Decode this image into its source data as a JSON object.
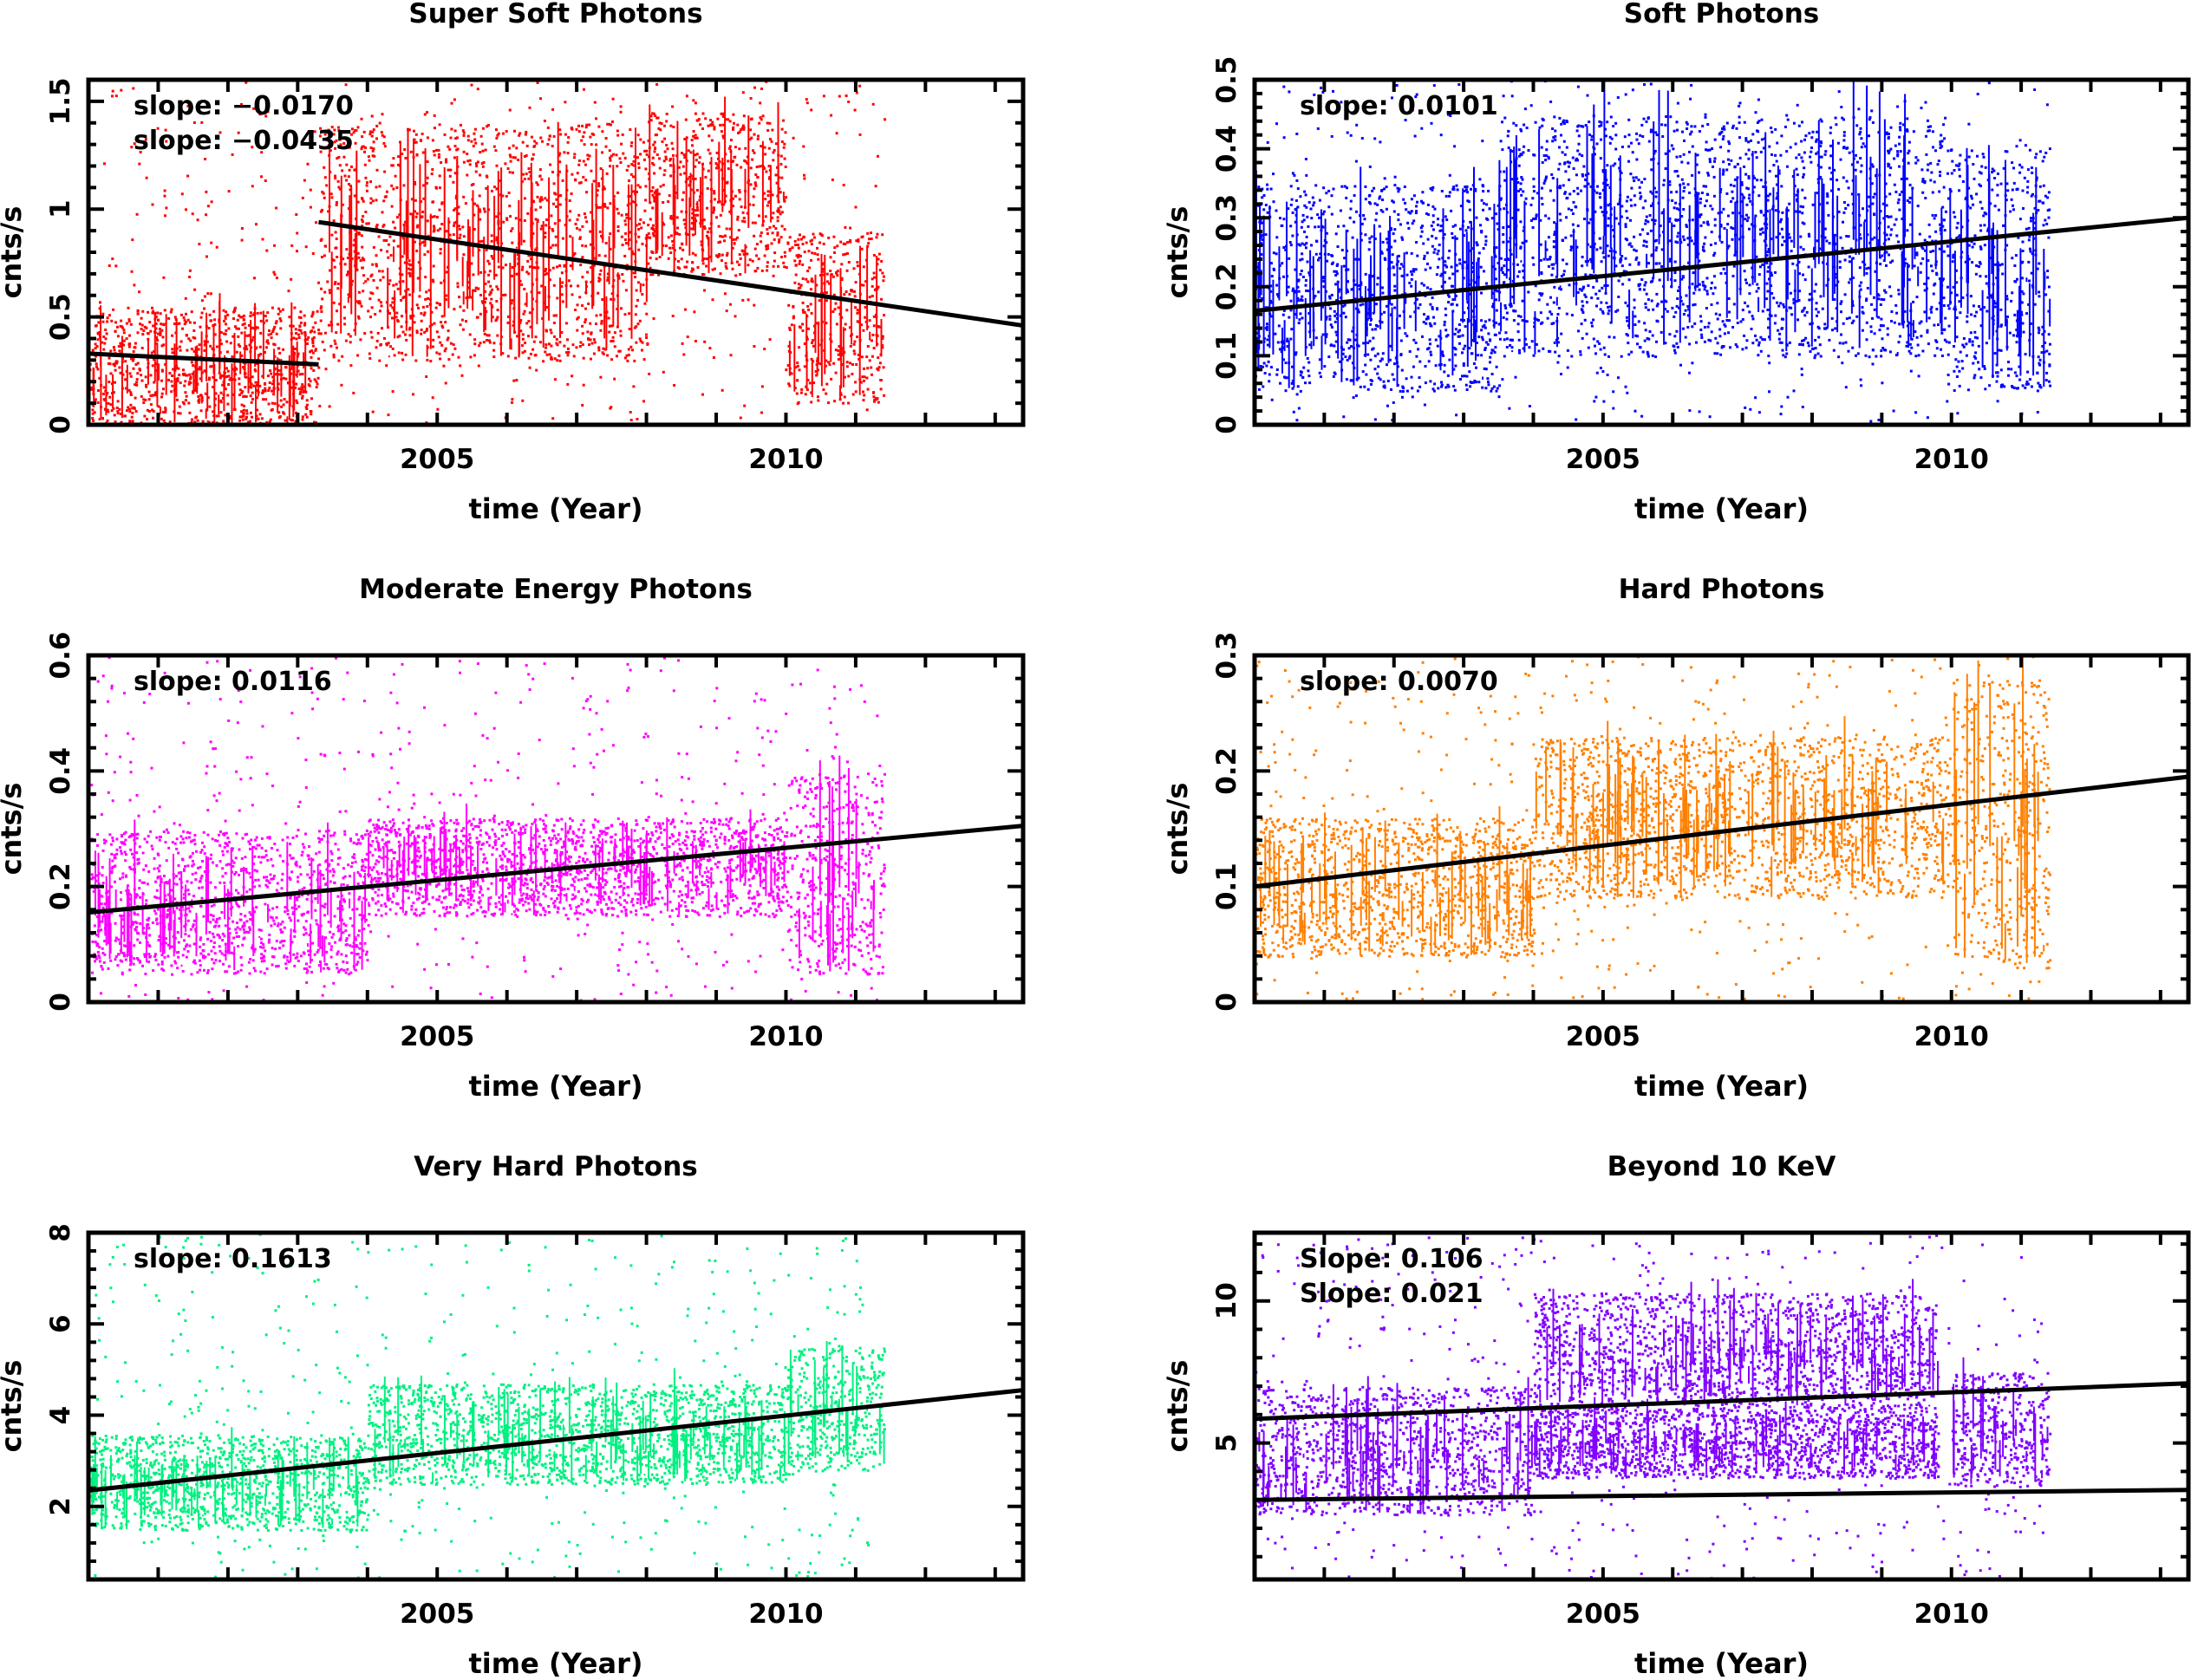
{
  "chart_data": [
    {
      "type": "scatter",
      "title": "Super Soft Photons",
      "xlabel": "time (Year)",
      "ylabel": "cnts/s",
      "xlim": [
        2000.0,
        2013.4
      ],
      "ylim": [
        0,
        1.6
      ],
      "x_ticks": [
        2005,
        2010
      ],
      "x_tick_labels": [
        "2005",
        "2010"
      ],
      "y_ticks": [
        0,
        0.5,
        1,
        1.5
      ],
      "y_tick_labels": [
        "0",
        "0.5",
        "1",
        "1.5"
      ],
      "color": "#ff0000",
      "annotations": [
        "slope: −0.0170",
        "slope: −0.0435"
      ],
      "fit_lines": [
        {
          "x": [
            2000.0,
            2003.3
          ],
          "y": [
            0.33,
            0.28
          ]
        },
        {
          "x": [
            2003.3,
            2013.4
          ],
          "y": [
            0.94,
            0.46
          ]
        }
      ],
      "data_bands": [
        {
          "from": 2000.0,
          "to": 2003.3,
          "low": 0.0,
          "high": 0.55
        },
        {
          "from": 2003.3,
          "to": 2008.0,
          "low": 0.3,
          "high": 1.4
        },
        {
          "from": 2008.0,
          "to": 2010.0,
          "low": 0.7,
          "high": 1.45
        },
        {
          "from": 2010.0,
          "to": 2011.4,
          "low": 0.1,
          "high": 0.9
        }
      ]
    },
    {
      "type": "scatter",
      "title": "Soft Photons",
      "xlabel": "time (Year)",
      "ylabel": "cnts/s",
      "xlim": [
        2000.0,
        2013.4
      ],
      "ylim": [
        0,
        0.5
      ],
      "x_ticks": [
        2005,
        2010
      ],
      "x_tick_labels": [
        "2005",
        "2010"
      ],
      "y_ticks": [
        0,
        0.1,
        0.2,
        0.3,
        0.4,
        0.5
      ],
      "y_tick_labels": [
        "0",
        "0.1",
        "0.2",
        "0.3",
        "0.4",
        "0.5"
      ],
      "color": "#0000ff",
      "annotations": [
        "slope: 0.0101"
      ],
      "fit_lines": [
        {
          "x": [
            2000.0,
            2013.4
          ],
          "y": [
            0.165,
            0.3
          ]
        }
      ],
      "data_bands": [
        {
          "from": 2000.0,
          "to": 2003.5,
          "low": 0.05,
          "high": 0.35
        },
        {
          "from": 2003.5,
          "to": 2009.9,
          "low": 0.1,
          "high": 0.45
        },
        {
          "from": 2009.9,
          "to": 2011.4,
          "low": 0.05,
          "high": 0.4
        }
      ]
    },
    {
      "type": "scatter",
      "title": "Moderate Energy Photons",
      "xlabel": "time (Year)",
      "ylabel": "cnts/s",
      "xlim": [
        2000.0,
        2013.4
      ],
      "ylim": [
        0,
        0.6
      ],
      "x_ticks": [
        2005,
        2010
      ],
      "x_tick_labels": [
        "2005",
        "2010"
      ],
      "y_ticks": [
        0,
        0.2,
        0.4,
        0.6
      ],
      "y_tick_labels": [
        "0",
        "0.2",
        "0.4",
        "0.6"
      ],
      "color": "#ff00ff",
      "annotations": [
        "slope: 0.0116"
      ],
      "fit_lines": [
        {
          "x": [
            2000.0,
            2013.4
          ],
          "y": [
            0.155,
            0.305
          ]
        }
      ],
      "data_bands": [
        {
          "from": 2000.0,
          "to": 2004.0,
          "low": 0.05,
          "high": 0.3
        },
        {
          "from": 2004.0,
          "to": 2010.0,
          "low": 0.15,
          "high": 0.32
        },
        {
          "from": 2010.0,
          "to": 2011.4,
          "low": 0.05,
          "high": 0.4
        }
      ]
    },
    {
      "type": "scatter",
      "title": "Hard Photons",
      "xlabel": "time (Year)",
      "ylabel": "cnts/s",
      "xlim": [
        2000.0,
        2013.4
      ],
      "ylim": [
        0,
        0.3
      ],
      "x_ticks": [
        2005,
        2010
      ],
      "x_tick_labels": [
        "2005",
        "2010"
      ],
      "y_ticks": [
        0,
        0.1,
        0.2,
        0.3
      ],
      "y_tick_labels": [
        "0",
        "0.1",
        "0.2",
        "0.3"
      ],
      "color": "#ff8000",
      "annotations": [
        "slope: 0.0070"
      ],
      "fit_lines": [
        {
          "x": [
            2000.0,
            2013.4
          ],
          "y": [
            0.1,
            0.195
          ]
        }
      ],
      "data_bands": [
        {
          "from": 2000.0,
          "to": 2004.0,
          "low": 0.04,
          "high": 0.16
        },
        {
          "from": 2004.0,
          "to": 2010.0,
          "low": 0.09,
          "high": 0.23
        },
        {
          "from": 2010.0,
          "to": 2011.4,
          "low": 0.03,
          "high": 0.28
        }
      ]
    },
    {
      "type": "scatter",
      "title": "Very Hard  Photons",
      "xlabel": "time (Year)",
      "ylabel": "cnts/s",
      "xlim": [
        2000.0,
        2013.4
      ],
      "ylim": [
        0.4,
        8
      ],
      "x_ticks": [
        2005,
        2010
      ],
      "x_tick_labels": [
        "2005",
        "2010"
      ],
      "y_ticks": [
        2,
        4,
        6,
        8
      ],
      "y_tick_labels": [
        "2",
        "4",
        "6",
        "8"
      ],
      "color": "#00f080",
      "annotations": [
        "slope: 0.1613"
      ],
      "fit_lines": [
        {
          "x": [
            2000.0,
            2013.4
          ],
          "y": [
            2.35,
            4.55
          ]
        }
      ],
      "data_bands": [
        {
          "from": 2000.0,
          "to": 2004.0,
          "low": 1.5,
          "high": 3.6
        },
        {
          "from": 2004.0,
          "to": 2010.0,
          "low": 2.5,
          "high": 4.7
        },
        {
          "from": 2010.0,
          "to": 2011.4,
          "low": 2.8,
          "high": 5.5
        }
      ]
    },
    {
      "type": "scatter",
      "title": "Beyond 10 KeV",
      "xlabel": "time (Year)",
      "ylabel": "cnts/s",
      "xlim": [
        2000.0,
        2013.4
      ],
      "ylim": [
        0.2,
        12.4
      ],
      "x_ticks": [
        2005,
        2010
      ],
      "x_tick_labels": [
        "2005",
        "2010"
      ],
      "y_ticks": [
        5,
        10
      ],
      "y_tick_labels": [
        "5",
        "10"
      ],
      "color": "#8000ff",
      "annotations": [
        "Slope: 0.106",
        "Slope: 0.021"
      ],
      "fit_lines": [
        {
          "x": [
            2000.0,
            2013.4
          ],
          "y": [
            5.85,
            7.1
          ]
        },
        {
          "x": [
            2000.0,
            2013.4
          ],
          "y": [
            3.0,
            3.35
          ]
        }
      ],
      "data_bands": [
        {
          "from": 2000.0,
          "to": 2004.0,
          "low": 2.5,
          "high": 7.0
        },
        {
          "from": 2004.0,
          "to": 2009.8,
          "low": 6.2,
          "high": 10.3
        },
        {
          "from": 2004.0,
          "to": 2009.8,
          "low": 3.8,
          "high": 6.2
        },
        {
          "from": 2010.0,
          "to": 2011.4,
          "low": 3.5,
          "high": 7.5
        }
      ]
    }
  ]
}
